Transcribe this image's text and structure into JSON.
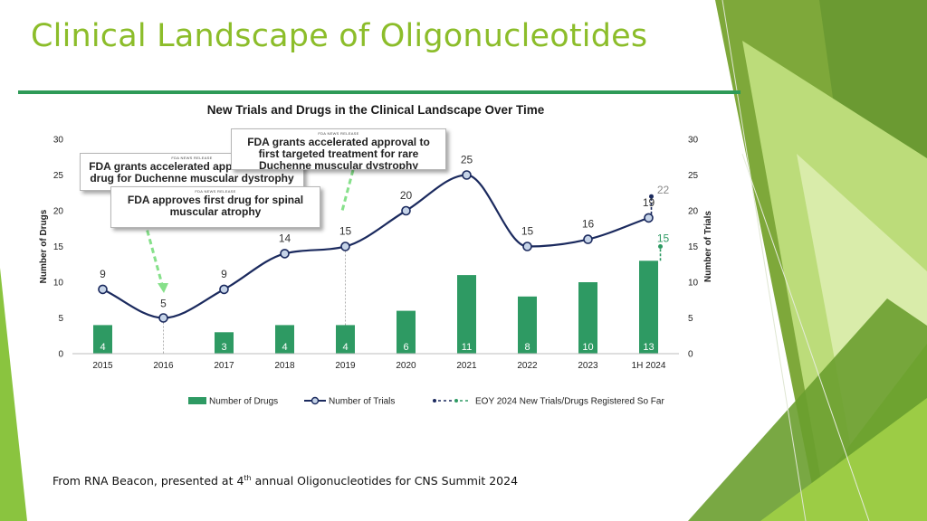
{
  "slide": {
    "title": "Clinical Landscape of Oligonucleotides",
    "footer_before": "From RNA Beacon, presented at 4",
    "footer_sup": "th",
    "footer_after": " annual Oligonucleotides for CNS Summit 2024"
  },
  "callouts": [
    {
      "tag": "FDA NEWS RELEASE",
      "text": "FDA grants accelerated approval to first drug for Duchenne muscular dystrophy"
    },
    {
      "tag": "FDA NEWS RELEASE",
      "text": "FDA approves first drug for spinal muscular atrophy"
    },
    {
      "tag": "FDA NEWS RELEASE",
      "text": "FDA grants accelerated approval to first targeted treatment for rare Duchenne muscular dystrophy mutation"
    }
  ],
  "chart_data": {
    "type": "bar+line",
    "title": "New Trials and Drugs in the Clinical Landscape Over Time",
    "categories": [
      "2015",
      "2016",
      "2017",
      "2018",
      "2019",
      "2020",
      "2021",
      "2022",
      "2023",
      "1H 2024"
    ],
    "series": [
      {
        "name": "Number of Drugs",
        "kind": "bar",
        "axis": "left",
        "values": [
          4,
          null,
          3,
          4,
          4,
          6,
          11,
          8,
          10,
          13
        ]
      },
      {
        "name": "Number of Trials",
        "kind": "line",
        "axis": "right",
        "values": [
          9,
          5,
          9,
          14,
          15,
          20,
          25,
          15,
          16,
          19
        ]
      }
    ],
    "eoy_projection": {
      "name": "EOY 2024 New Trials/Drugs Registered So Far",
      "category": "1H 2024",
      "trials_value": 22,
      "drugs_value": 15
    },
    "ylabel_left": "Number of Drugs",
    "ylabel_right": "Number of Trials",
    "ylim": [
      0,
      30
    ],
    "yticks": [
      0,
      5,
      10,
      15,
      20,
      25,
      30
    ],
    "colors": {
      "bar": "#2e9a63",
      "line": "#1b2a5e",
      "marker_fill": "#c6d4e8",
      "eoy_drugs": "#2e9a63",
      "eoy_trials": "#1b2a5e",
      "guide": "#9a9a9a",
      "arrow": "#86e08a"
    },
    "legend": "bottom"
  }
}
